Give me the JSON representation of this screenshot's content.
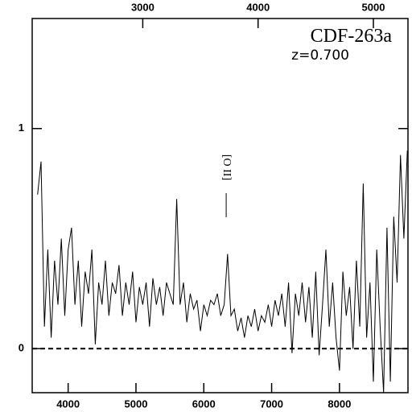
{
  "chart_data": {
    "type": "line",
    "title": "CDF-263a",
    "subtitle": "z=0.700",
    "annotation": "[O II]",
    "annotation_x": 6330,
    "x": [
      3550,
      3600,
      3650,
      3700,
      3750,
      3800,
      3850,
      3900,
      3950,
      4000,
      4050,
      4100,
      4150,
      4200,
      4250,
      4300,
      4350,
      4400,
      4450,
      4500,
      4550,
      4600,
      4650,
      4700,
      4750,
      4800,
      4850,
      4900,
      4950,
      5000,
      5050,
      5100,
      5150,
      5200,
      5250,
      5300,
      5350,
      5400,
      5450,
      5500,
      5550,
      5600,
      5650,
      5700,
      5750,
      5800,
      5850,
      5900,
      5950,
      6000,
      6050,
      6100,
      6150,
      6200,
      6250,
      6300,
      6350,
      6400,
      6450,
      6500,
      6550,
      6600,
      6650,
      6700,
      6750,
      6800,
      6850,
      6900,
      6950,
      7000,
      7050,
      7100,
      7150,
      7200,
      7250,
      7300,
      7350,
      7400,
      7450,
      7500,
      7550,
      7600,
      7650,
      7700,
      7750,
      7800,
      7850,
      7900,
      7950,
      8000,
      8050,
      8100,
      8150,
      8200,
      8250,
      8300,
      8350,
      8400,
      8450,
      8500,
      8550,
      8600,
      8650,
      8700,
      8750,
      8800,
      8850,
      8900,
      8950,
      9000
    ],
    "series": [
      {
        "color": "#000000",
        "values": [
          0.7,
          0.85,
          0.1,
          0.45,
          0.05,
          0.4,
          0.2,
          0.5,
          0.15,
          0.45,
          0.55,
          0.2,
          0.4,
          0.1,
          0.35,
          0.25,
          0.45,
          0.02,
          0.3,
          0.2,
          0.4,
          0.15,
          0.3,
          0.25,
          0.38,
          0.15,
          0.3,
          0.2,
          0.35,
          0.12,
          0.28,
          0.2,
          0.3,
          0.1,
          0.32,
          0.2,
          0.28,
          0.15,
          0.3,
          0.25,
          0.2,
          0.68,
          0.2,
          0.3,
          0.12,
          0.25,
          0.18,
          0.22,
          0.08,
          0.2,
          0.15,
          0.22,
          0.2,
          0.25,
          0.15,
          0.2,
          0.43,
          0.15,
          0.18,
          0.08,
          0.14,
          0.05,
          0.15,
          0.1,
          0.18,
          0.08,
          0.15,
          0.12,
          0.2,
          0.1,
          0.22,
          0.15,
          0.25,
          0.1,
          0.3,
          -0.02,
          0.25,
          0.15,
          0.3,
          0.12,
          0.28,
          0.05,
          0.35,
          -0.03,
          0.2,
          0.45,
          0.1,
          0.3,
          0.05,
          -0.1,
          0.35,
          0.15,
          0.28,
          0.0,
          0.4,
          0.1,
          0.75,
          0.05,
          0.3,
          -0.15,
          0.45,
          0.1,
          -0.2,
          0.55,
          -0.15,
          0.6,
          0.3,
          0.88,
          0.5,
          0.9
        ]
      }
    ],
    "xlim": [
      3470,
      9010
    ],
    "xticks": [
      4000,
      5000,
      6000,
      7000,
      8000
    ],
    "x2lim": [
      2041,
      5300
    ],
    "x2ticks": [
      3000,
      4000,
      5000
    ],
    "ylim": [
      -0.2,
      1.5
    ],
    "yticks": [
      0,
      1
    ],
    "zero_line": true
  }
}
